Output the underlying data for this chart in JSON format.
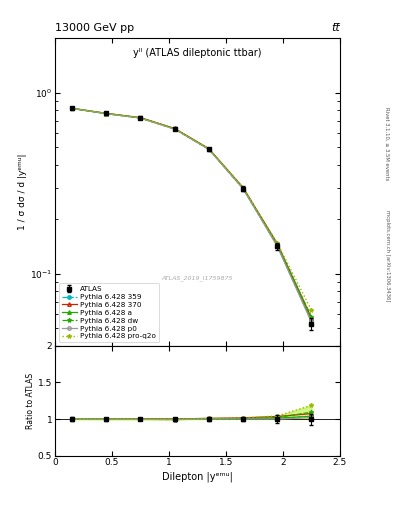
{
  "title_top": "13000 GeV pp",
  "title_right": "tt̅",
  "right_label_top": "Rivet 3.1.10, ≥ 3.5M events",
  "right_label_bot": "mcplots.cern.ch [arXiv:1306.3436]",
  "inner_title": "yᴵᴵ (ATLAS dileptonic ttbar)",
  "watermark": "ATLAS_2019_I1759875",
  "xlabel": "Dilepton |yᵉᵐᵘ|",
  "ylabel_main": "1 / σ dσ / d |yᵉᵐᵘ|",
  "ylabel_ratio": "Ratio to ATLAS",
  "x_values": [
    0.15,
    0.45,
    0.75,
    1.05,
    1.35,
    1.65,
    1.95,
    2.25
  ],
  "atlas_y": [
    0.82,
    0.77,
    0.728,
    0.635,
    0.487,
    0.295,
    0.142,
    0.053
  ],
  "atlas_yerr": [
    0.018,
    0.015,
    0.014,
    0.013,
    0.011,
    0.009,
    0.007,
    0.004
  ],
  "py359_y": [
    0.82,
    0.768,
    0.726,
    0.632,
    0.488,
    0.296,
    0.143,
    0.055
  ],
  "py370_y": [
    0.822,
    0.771,
    0.73,
    0.636,
    0.492,
    0.3,
    0.147,
    0.057
  ],
  "pya_y": [
    0.821,
    0.769,
    0.727,
    0.633,
    0.489,
    0.297,
    0.144,
    0.055
  ],
  "pydw_y": [
    0.82,
    0.768,
    0.726,
    0.631,
    0.488,
    0.297,
    0.145,
    0.058
  ],
  "pyp0_y": [
    0.82,
    0.768,
    0.725,
    0.631,
    0.487,
    0.295,
    0.142,
    0.054
  ],
  "pyq2o_y": [
    0.821,
    0.769,
    0.727,
    0.633,
    0.491,
    0.3,
    0.148,
    0.063
  ],
  "xlim": [
    0.0,
    2.5
  ],
  "ylim_main": [
    0.04,
    2.0
  ],
  "ylim_ratio": [
    0.5,
    2.0
  ],
  "bg_color": "#ffffff",
  "atlas_color": "#000000",
  "py359_color": "#00bbbb",
  "py370_color": "#cc2200",
  "pya_color": "#22aa00",
  "pydw_color": "#22aa00",
  "pyp0_color": "#999999",
  "pyq2o_color": "#99bb00",
  "band_color": "#ddff44",
  "band_alpha": 0.5
}
